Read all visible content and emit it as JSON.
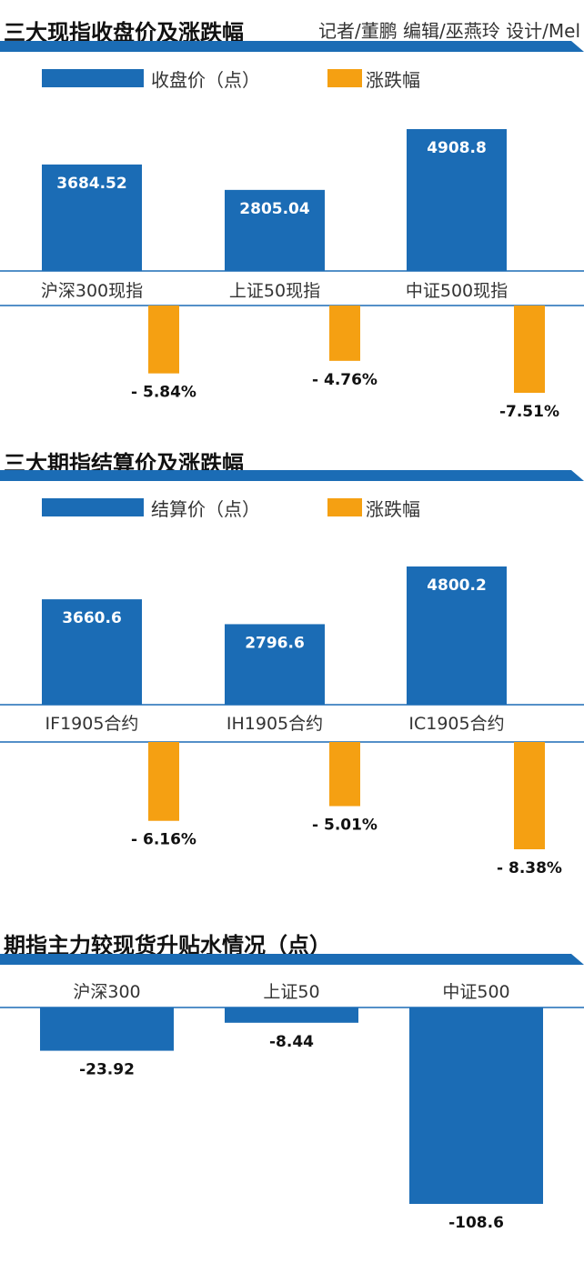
{
  "credits": "记者/董鹏 编辑/巫燕玲 设计/Mel",
  "colors": {
    "blue": "#1b6cb5",
    "orange": "#f5a012",
    "band": "#1b6cb5",
    "baseline": "#1b6cb5"
  },
  "chart_data": [
    {
      "type": "bar",
      "title": "三大现指收盘价及涨跌幅",
      "legend": [
        "收盘价（点）",
        "涨跌幅"
      ],
      "categories": [
        "沪深300现指",
        "上证50现指",
        "中证500现指"
      ],
      "series": [
        {
          "name": "收盘价（点）",
          "values": [
            3684.52,
            2805.04,
            4908.8
          ],
          "labels": [
            "3684.52",
            "2805.04",
            "4908.8"
          ]
        },
        {
          "name": "涨跌幅",
          "values": [
            -5.84,
            -4.76,
            -7.51
          ],
          "labels": [
            "- 5.84%",
            "- 4.76%",
            "-7.51%"
          ]
        }
      ]
    },
    {
      "type": "bar",
      "title": "三大期指结算价及涨跌幅",
      "legend": [
        "结算价（点）",
        "涨跌幅"
      ],
      "categories": [
        "IF1905合约",
        "IH1905合约",
        "IC1905合约"
      ],
      "series": [
        {
          "name": "结算价（点）",
          "values": [
            3660.6,
            2796.6,
            4800.2
          ],
          "labels": [
            "3660.6",
            "2796.6",
            "4800.2"
          ]
        },
        {
          "name": "涨跌幅",
          "values": [
            -6.16,
            -5.01,
            -8.38
          ],
          "labels": [
            "- 6.16%",
            "- 5.01%",
            "- 8.38%"
          ]
        }
      ]
    },
    {
      "type": "bar",
      "title": "期指主力较现货升贴水情况（点）",
      "categories": [
        "沪深300",
        "上证50",
        "中证500"
      ],
      "series": [
        {
          "values": [
            -23.92,
            -8.44,
            -108.6
          ],
          "labels": [
            "-23.92",
            "-8.44",
            "-108.6"
          ]
        }
      ]
    }
  ]
}
